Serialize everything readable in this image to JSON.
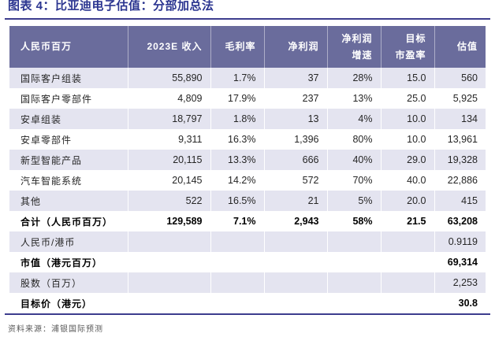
{
  "title": "图表 4：比亚迪电子估值：分部加总法",
  "table": {
    "columns": [
      "人民币百万",
      "2023E 收入",
      "毛利率",
      "净利润",
      "净利润\n增速",
      "目标\n市盈率",
      "估值"
    ],
    "rows": [
      {
        "cells": [
          "国际客户组装",
          "55,890",
          "1.7%",
          "37",
          "28%",
          "15.0",
          "560"
        ],
        "shade": true,
        "bold": false
      },
      {
        "cells": [
          "国际客户零部件",
          "4,809",
          "17.9%",
          "237",
          "13%",
          "25.0",
          "5,925"
        ],
        "shade": false,
        "bold": false
      },
      {
        "cells": [
          "安卓组装",
          "18,797",
          "1.8%",
          "13",
          "4%",
          "10.0",
          "134"
        ],
        "shade": true,
        "bold": false
      },
      {
        "cells": [
          "安卓零部件",
          "9,311",
          "16.3%",
          "1,396",
          "80%",
          "10.0",
          "13,961"
        ],
        "shade": false,
        "bold": false
      },
      {
        "cells": [
          "新型智能产品",
          "20,115",
          "13.3%",
          "666",
          "40%",
          "29.0",
          "19,328"
        ],
        "shade": true,
        "bold": false
      },
      {
        "cells": [
          "汽车智能系统",
          "20,145",
          "14.2%",
          "572",
          "70%",
          "40.0",
          "22,886"
        ],
        "shade": false,
        "bold": false
      },
      {
        "cells": [
          "其他",
          "522",
          "16.5%",
          "21",
          "5%",
          "20.0",
          "415"
        ],
        "shade": true,
        "bold": false
      },
      {
        "cells": [
          "合计（人民币百万）",
          "129,589",
          "7.1%",
          "2,943",
          "58%",
          "21.5",
          "63,208"
        ],
        "shade": false,
        "bold": true
      },
      {
        "cells": [
          "人民币/港币",
          "",
          "",
          "",
          "",
          "",
          "0.9119"
        ],
        "shade": true,
        "bold": false
      },
      {
        "cells": [
          "市值（港元百万）",
          "",
          "",
          "",
          "",
          "",
          "69,314"
        ],
        "shade": false,
        "bold": true
      },
      {
        "cells": [
          "股数（百万）",
          "",
          "",
          "",
          "",
          "",
          "2,253"
        ],
        "shade": true,
        "bold": false
      },
      {
        "cells": [
          "目标价（港元）",
          "",
          "",
          "",
          "",
          "",
          "30.8"
        ],
        "shade": false,
        "bold": true
      }
    ]
  },
  "footer": {
    "source": "资料来源：浦银国际预测"
  },
  "colors": {
    "title": "#2b3590",
    "rule": "#3d3d8e",
    "header_bg": "#6a6c9c",
    "header_text": "#ffffff",
    "stripe": "#e4e4f0",
    "body_text": "#262626"
  }
}
